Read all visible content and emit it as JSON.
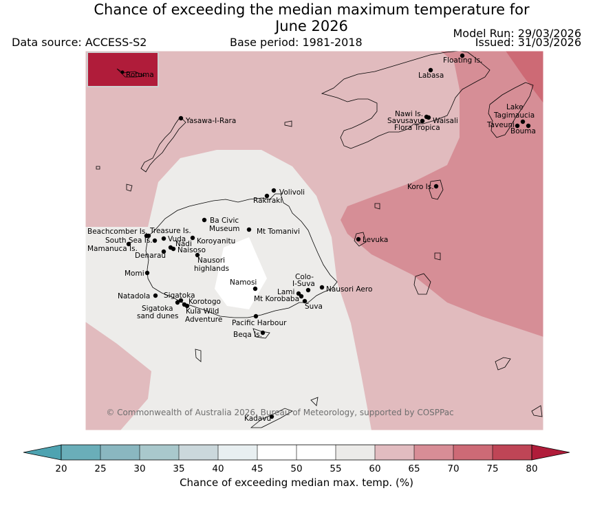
{
  "header": {
    "title_line1": "Chance of exceeding the median maximum temperature for",
    "title_line2": "June 2026",
    "data_source": "Data source: ACCESS-S2",
    "base_period": "Base period: 1981-2018",
    "model_run": "Model Run: 29/03/2026",
    "issued": "Issued: 31/03/2026"
  },
  "map": {
    "inset_label": "Rotuma",
    "copyright": "© Commonwealth of Australia 2026, Bureau of Meteorology, supported by COSPPac",
    "places": [
      {
        "name": "Floating Is."
      },
      {
        "name": "Labasa"
      },
      {
        "name": "Yasawa-I-Rara"
      },
      {
        "name": "Nawi Is."
      },
      {
        "name": "Savusavu"
      },
      {
        "name": "Waisali"
      },
      {
        "name": "Flora Tropica"
      },
      {
        "name": "Lake"
      },
      {
        "name": "Tagimaucia"
      },
      {
        "name": "Taveuni"
      },
      {
        "name": "Bouma"
      },
      {
        "name": "Koro Is."
      },
      {
        "name": "Volivoli"
      },
      {
        "name": "Rakiraki"
      },
      {
        "name": "Ba Civic"
      },
      {
        "name": "Museum"
      },
      {
        "name": "Mt Tomanivi"
      },
      {
        "name": "Beachcomber Is."
      },
      {
        "name": "Treasure Is."
      },
      {
        "name": "South Sea Is."
      },
      {
        "name": "Vuda"
      },
      {
        "name": "Koroyanitu"
      },
      {
        "name": "Mamanuca Is."
      },
      {
        "name": "Nadi"
      },
      {
        "name": "Naisoso"
      },
      {
        "name": "Denarau"
      },
      {
        "name": "Levuka"
      },
      {
        "name": "Nausori"
      },
      {
        "name": "highlands"
      },
      {
        "name": "Momi"
      },
      {
        "name": "Namosi"
      },
      {
        "name": "Colo-"
      },
      {
        "name": "I-Suva"
      },
      {
        "name": "Lami"
      },
      {
        "name": "Nausori Aero"
      },
      {
        "name": "Mt Korobaba"
      },
      {
        "name": "Suva"
      },
      {
        "name": "Natadola"
      },
      {
        "name": "Sigatoka"
      },
      {
        "name": "Korotogo"
      },
      {
        "name": "Sigatoka"
      },
      {
        "name": "sand dunes"
      },
      {
        "name": "Kula Wild"
      },
      {
        "name": "Adventure"
      },
      {
        "name": "Pacific Harbour"
      },
      {
        "name": "Beqa Is."
      },
      {
        "name": "Kadavu"
      }
    ]
  },
  "colorbar": {
    "ticks": [
      "20",
      "25",
      "30",
      "35",
      "40",
      "45",
      "50",
      "55",
      "60",
      "65",
      "70",
      "75",
      "80"
    ],
    "colors": [
      "#6aaeb9",
      "#8ab7c0",
      "#a9c8cc",
      "#cbd8dc",
      "#e8eff1",
      "#ffffff",
      "#ffffff",
      "#ecebe9",
      "#e2bcc0",
      "#d88d96",
      "#cd6a76",
      "#bf4556"
    ],
    "low_extend_color": "#4ea3b1",
    "high_extend_color": "#b01c3a",
    "label": "Chance of exceeding median max. temp. (%)"
  },
  "legend_colors": {
    "near_median": "#edecea",
    "pct_60_65": "#e1bbbe",
    "pct_65_70": "#d68e96",
    "pct_70_75": "#cd6a75",
    "pct_80_plus": "#b01c3a"
  }
}
